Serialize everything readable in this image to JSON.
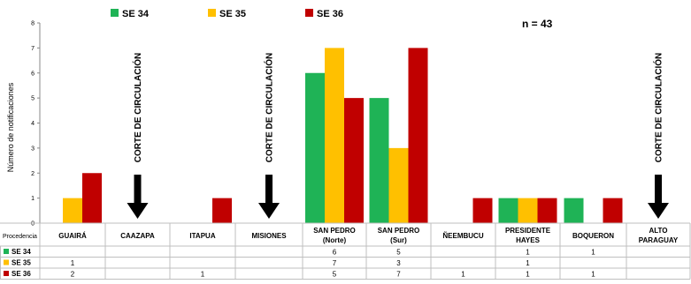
{
  "chart_data": {
    "type": "bar",
    "ylabel": "Número de notificaciones",
    "ylim": [
      0,
      8
    ],
    "yticks": [
      0,
      1,
      2,
      3,
      4,
      5,
      6,
      7,
      8
    ],
    "n_label": "n = 43",
    "legend_position": "top",
    "row_header": "Procedencia",
    "categories": [
      [
        "GUAIRÁ"
      ],
      [
        "CAAZAPA"
      ],
      [
        "ITAPUA"
      ],
      [
        "MISIONES"
      ],
      [
        "SAN PEDRO",
        "(Norte)"
      ],
      [
        "SAN PEDRO",
        "(Sur)"
      ],
      [
        "ÑEEMBUCU"
      ],
      [
        "PRESIDENTE",
        "HAYES"
      ],
      [
        "BOQUERON"
      ],
      [
        "ALTO",
        "PARAGUAY"
      ]
    ],
    "series": [
      {
        "name": "SE 34",
        "color": "#1fb356",
        "values": [
          0,
          0,
          0,
          0,
          6,
          5,
          0,
          1,
          1,
          0
        ]
      },
      {
        "name": "SE 35",
        "color": "#ffc000",
        "values": [
          1,
          0,
          0,
          0,
          7,
          3,
          0,
          1,
          0,
          0
        ]
      },
      {
        "name": "SE 36",
        "color": "#c00000",
        "values": [
          2,
          0,
          1,
          0,
          5,
          7,
          1,
          1,
          1,
          0
        ]
      }
    ],
    "table": [
      [
        "",
        "",
        "",
        "",
        "6",
        "5",
        "",
        "1",
        "1",
        ""
      ],
      [
        "1",
        "",
        "",
        "",
        "7",
        "3",
        "",
        "1",
        "",
        ""
      ],
      [
        "2",
        "",
        "1",
        "",
        "5",
        "7",
        "1",
        "1",
        "1",
        ""
      ]
    ],
    "annotations": [
      {
        "text": "CORTE DE CIRCULACIÓN",
        "category_index": 1,
        "arrow_icon": "down-arrow-icon"
      },
      {
        "text": "CORTE DE CIRCULACIÓN",
        "category_index": 3,
        "arrow_icon": "down-arrow-icon"
      },
      {
        "text": "CORTE DE CIRCULACIÓN",
        "category_index": 9,
        "arrow_icon": "down-arrow-icon"
      }
    ],
    "grid": false
  }
}
